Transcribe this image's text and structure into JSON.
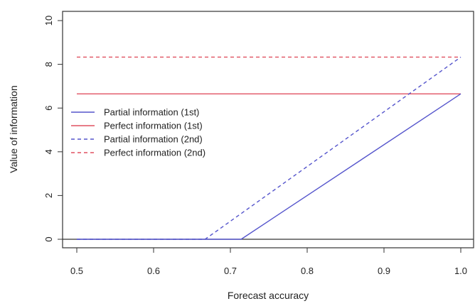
{
  "chart_data": {
    "type": "line",
    "title": "",
    "xlabel": "Forecast accuracy",
    "ylabel": "Value of information",
    "xlim": [
      0.5,
      1.0
    ],
    "ylim": [
      0,
      10
    ],
    "x_ticks": [
      0.5,
      0.6,
      0.7,
      0.8,
      0.9,
      1.0
    ],
    "x_tick_labels": [
      "0.5",
      "0.6",
      "0.7",
      "0.8",
      "0.9",
      "1.0"
    ],
    "y_ticks": [
      0,
      2,
      4,
      6,
      8,
      10
    ],
    "y_tick_labels": [
      "0",
      "2",
      "4",
      "6",
      "8",
      "10"
    ],
    "grid": false,
    "legend_position": "center-left",
    "reference_line": {
      "y": 0,
      "color": "#333333"
    },
    "series": [
      {
        "name": "Partial information (1st)",
        "color": "#5555cc",
        "dash": "solid",
        "x": [
          0.5,
          0.714,
          1.0
        ],
        "y": [
          0,
          0,
          6.65
        ]
      },
      {
        "name": "Perfect information (1st)",
        "color": "#e05060",
        "dash": "solid",
        "x": [
          0.5,
          1.0
        ],
        "y": [
          6.65,
          6.65
        ]
      },
      {
        "name": "Partial information (2nd)",
        "color": "#5555cc",
        "dash": "dashed",
        "x": [
          0.5,
          0.667,
          1.0
        ],
        "y": [
          0,
          0,
          8.33
        ]
      },
      {
        "name": "Perfect information (2nd)",
        "color": "#e05060",
        "dash": "dashed",
        "x": [
          0.5,
          1.0
        ],
        "y": [
          8.33,
          8.33
        ]
      }
    ]
  }
}
